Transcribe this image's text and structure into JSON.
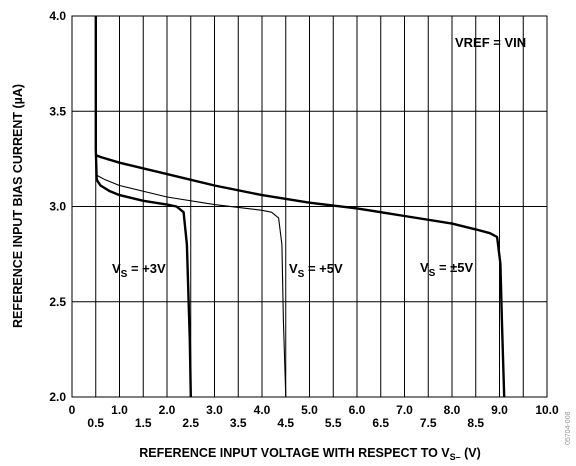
{
  "chart_data": {
    "type": "line",
    "xlabel": "REFERENCE INPUT VOLTAGE WITH RESPECT TO V",
    "xlabel_sub": "S–",
    "xlabel_unit": " (V)",
    "ylabel": "REFERENCE INPUT BIAS CURRENT (µA)",
    "xlim": [
      0,
      10.0
    ],
    "ylim": [
      2.0,
      4.0
    ],
    "grid": true,
    "x_ticks_top": [
      "0",
      "1.0",
      "2.0",
      "3.0",
      "4.0",
      "5.0",
      "6.0",
      "7.0",
      "8.0",
      "9.0",
      "10.0"
    ],
    "x_ticks_bottom": [
      "0.5",
      "1.5",
      "2.5",
      "3.5",
      "4.5",
      "5.5",
      "6.5",
      "7.5",
      "8.5"
    ],
    "y_ticks": [
      "4.0",
      "3.5",
      "3.0",
      "2.5",
      "2.0"
    ],
    "annotations": {
      "condition": "VREF  = VIN",
      "series_labels": [
        {
          "main": "V",
          "sub": "S",
          "rest": "  = +3V"
        },
        {
          "main": "V",
          "sub": "S",
          "rest": "  = +5V"
        },
        {
          "main": "V",
          "sub": "S",
          "rest": "  = ±5V"
        }
      ]
    },
    "figure_code": "05704-008",
    "series": [
      {
        "stroke": "heavy",
        "x": [
          0.5,
          0.5,
          0.52,
          0.6,
          0.8,
          1.0,
          1.5,
          2.0,
          2.2,
          2.35,
          2.42,
          2.48,
          2.5
        ],
        "y": [
          4.0,
          3.3,
          3.14,
          3.11,
          3.08,
          3.06,
          3.03,
          3.01,
          3.0,
          2.97,
          2.8,
          2.3,
          2.0
        ]
      },
      {
        "stroke": "light",
        "x": [
          0.5,
          0.55,
          0.7,
          1.0,
          2.0,
          3.0,
          4.0,
          4.2,
          4.35,
          4.42,
          4.45,
          4.5
        ],
        "y": [
          3.17,
          3.16,
          3.14,
          3.11,
          3.05,
          3.01,
          2.98,
          2.97,
          2.94,
          2.8,
          2.4,
          2.0
        ]
      },
      {
        "stroke": "heavy",
        "x": [
          0.5,
          0.6,
          1.0,
          2.0,
          3.0,
          4.0,
          5.0,
          6.0,
          7.0,
          8.0,
          8.5,
          8.8,
          8.95,
          9.02,
          9.05,
          9.1
        ],
        "y": [
          3.27,
          3.26,
          3.23,
          3.17,
          3.11,
          3.06,
          3.02,
          2.99,
          2.95,
          2.91,
          2.88,
          2.86,
          2.84,
          2.7,
          2.4,
          2.0
        ]
      }
    ]
  }
}
